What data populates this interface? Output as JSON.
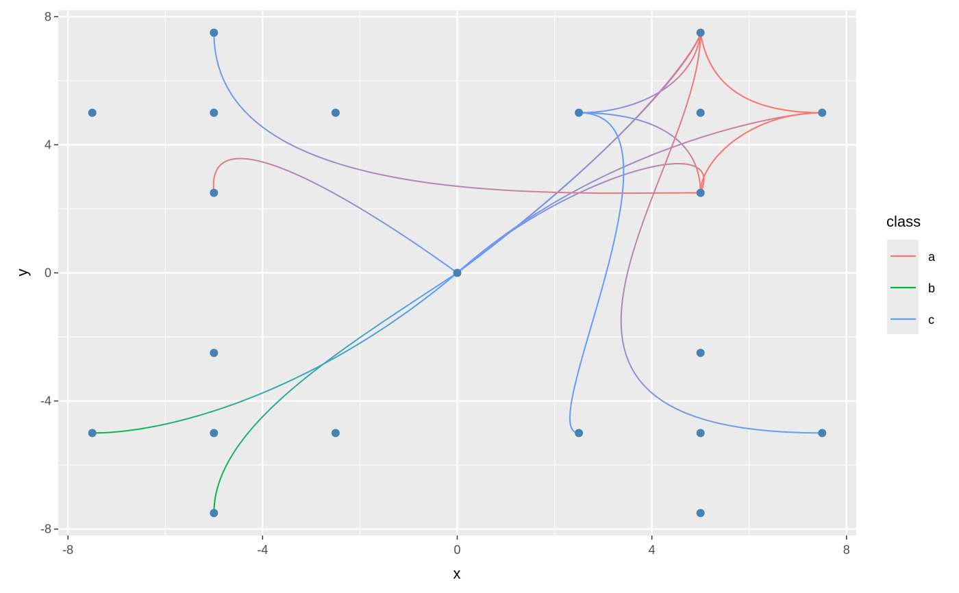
{
  "chart_data": {
    "type": "scatter",
    "title": "",
    "xlabel": "x",
    "ylabel": "y",
    "xlim": [
      -8.2,
      8.2
    ],
    "ylim": [
      -8.2,
      8.2
    ],
    "x_ticks": [
      -8,
      -4,
      0,
      4,
      8
    ],
    "y_ticks": [
      -8,
      -4,
      0,
      4,
      8
    ],
    "x_tick_labels": [
      "-8",
      "-4",
      "0",
      "4",
      "8"
    ],
    "y_tick_labels": [
      "-8",
      "-4",
      "0",
      "4",
      "8"
    ],
    "grid": true,
    "legend": {
      "title": "class",
      "position": "right",
      "entries": [
        {
          "label": "a",
          "color": "#F8766D"
        },
        {
          "label": "b",
          "color": "#00BA38"
        },
        {
          "label": "c",
          "color": "#619CFF"
        }
      ]
    },
    "colors": {
      "panel": "#EBEBEB",
      "grid": "#FFFFFF",
      "point": "#4682B4",
      "a": "#F8766D",
      "b": "#00BA38",
      "c": "#619CFF"
    },
    "points": [
      {
        "x": 0,
        "y": 0
      },
      {
        "x": 5,
        "y": 7.5
      },
      {
        "x": 5,
        "y": 5
      },
      {
        "x": 5,
        "y": 2.5
      },
      {
        "x": 2.5,
        "y": 5
      },
      {
        "x": 7.5,
        "y": 5
      },
      {
        "x": -5,
        "y": 7.5
      },
      {
        "x": -5,
        "y": 5
      },
      {
        "x": -5,
        "y": 2.5
      },
      {
        "x": -7.5,
        "y": 5
      },
      {
        "x": -2.5,
        "y": 5
      },
      {
        "x": 5,
        "y": -2.5
      },
      {
        "x": 5,
        "y": -5
      },
      {
        "x": 5,
        "y": -7.5
      },
      {
        "x": 2.5,
        "y": -5
      },
      {
        "x": 7.5,
        "y": -5
      },
      {
        "x": -5,
        "y": -2.5
      },
      {
        "x": -5,
        "y": -5
      },
      {
        "x": -5,
        "y": -7.5
      },
      {
        "x": -7.5,
        "y": -5
      },
      {
        "x": -2.5,
        "y": -5
      }
    ],
    "edges": [
      {
        "from": [
          0,
          0
        ],
        "to": [
          5,
          7.5
        ],
        "cp1": [
          3.8,
          4.3
        ],
        "cp2": [
          5,
          7.2
        ],
        "start_class": "c",
        "end_class": "a"
      },
      {
        "from": [
          0,
          0
        ],
        "to": [
          5,
          7.5
        ],
        "cp1": [
          3.5,
          4.0
        ],
        "cp2": [
          4.9,
          6.8
        ],
        "start_class": "c",
        "end_class": "a"
      },
      {
        "from": [
          0,
          0
        ],
        "to": [
          7.5,
          5
        ],
        "cp1": [
          2.8,
          3.8
        ],
        "cp2": [
          6.5,
          5.0
        ],
        "start_class": "c",
        "end_class": "a"
      },
      {
        "from": [
          0,
          0
        ],
        "to": [
          5,
          2.5
        ],
        "cp1": [
          2.2,
          3.0
        ],
        "cp2": [
          5.6,
          4.5
        ],
        "start_class": "c",
        "end_class": "a"
      },
      {
        "from": [
          5,
          7.5
        ],
        "to": [
          7.5,
          5
        ],
        "cp1": [
          5.2,
          5.6
        ],
        "cp2": [
          6.2,
          5.0
        ],
        "start_class": "a",
        "end_class": "a"
      },
      {
        "from": [
          7.5,
          5
        ],
        "to": [
          5,
          2.5
        ],
        "cp1": [
          6.0,
          5.0
        ],
        "cp2": [
          5.0,
          3.5
        ],
        "start_class": "a",
        "end_class": "a"
      },
      {
        "from": [
          2.5,
          5
        ],
        "to": [
          5,
          7.5
        ],
        "cp1": [
          3.8,
          5.0
        ],
        "cp2": [
          4.9,
          6.0
        ],
        "start_class": "c",
        "end_class": "a"
      },
      {
        "from": [
          2.5,
          5
        ],
        "to": [
          5,
          2.5
        ],
        "cp1": [
          4.2,
          5.0
        ],
        "cp2": [
          5.0,
          4.0
        ],
        "start_class": "c",
        "end_class": "a"
      },
      {
        "from": [
          2.5,
          5
        ],
        "to": [
          2.5,
          -5
        ],
        "cp1": [
          5.0,
          5.0
        ],
        "cp2": [
          1.5,
          -5.0
        ],
        "start_class": "c",
        "end_class": "c"
      },
      {
        "from": [
          5,
          7.5
        ],
        "to": [
          7.5,
          -5
        ],
        "cp1": [
          5.0,
          3.0
        ],
        "cp2": [
          0.0,
          -5.0
        ],
        "start_class": "a",
        "end_class": "c"
      },
      {
        "from": [
          0,
          0
        ],
        "to": [
          -5,
          2.5
        ],
        "cp1": [
          -2.0,
          2.2
        ],
        "cp2": [
          -5.2,
          5.2
        ],
        "start_class": "c",
        "end_class": "a"
      },
      {
        "from": [
          -5,
          7.5
        ],
        "to": [
          5,
          2.5
        ],
        "cp1": [
          -5,
          2.0
        ],
        "cp2": [
          2.0,
          2.5
        ],
        "start_class": "c",
        "end_class": "a"
      },
      {
        "from": [
          0,
          0
        ],
        "to": [
          -7.5,
          -5
        ],
        "cp1": [
          -2.8,
          -3.6
        ],
        "cp2": [
          -5.8,
          -5.0
        ],
        "start_class": "c",
        "end_class": "b"
      },
      {
        "from": [
          0,
          0
        ],
        "to": [
          -5,
          -7.5
        ],
        "cp1": [
          -2.4,
          -2.4
        ],
        "cp2": [
          -5.0,
          -4.8
        ],
        "start_class": "c",
        "end_class": "b"
      }
    ]
  }
}
